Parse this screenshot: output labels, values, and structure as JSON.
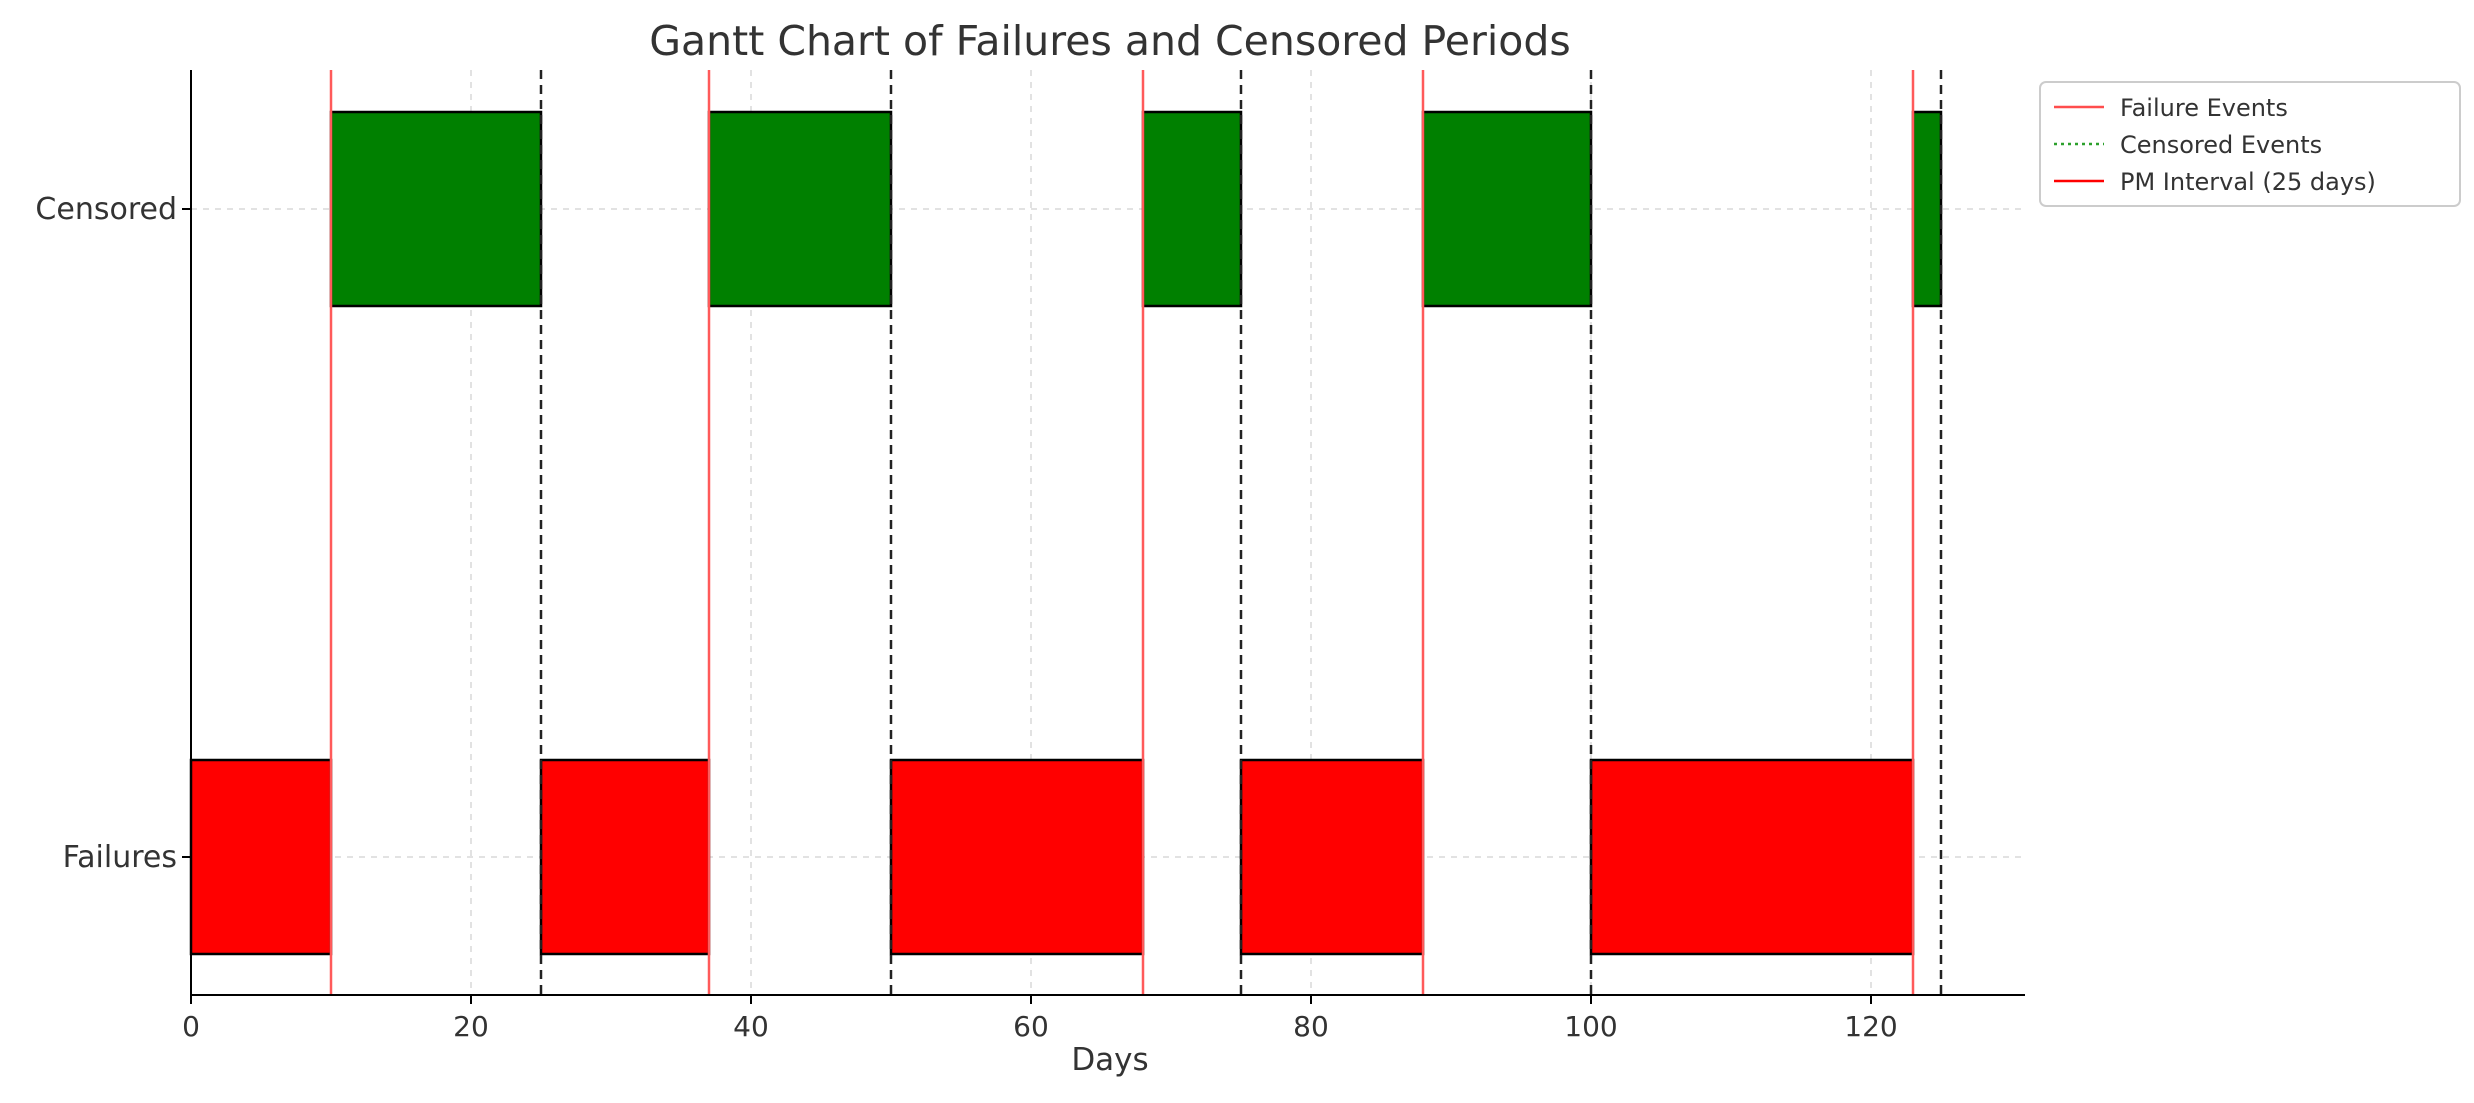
{
  "chart_data": {
    "type": "gantt",
    "title": "Gantt Chart of Failures and Censored Periods",
    "xlabel": "Days",
    "ylabel": "",
    "xlim": [
      0,
      131
    ],
    "x_ticks": [
      0,
      20,
      40,
      60,
      80,
      100,
      120
    ],
    "categories": [
      "Failures",
      "Censored"
    ],
    "grid": true,
    "legend_position": "upper-right-outside",
    "series": [
      {
        "name": "Failures",
        "color": "#ff0000",
        "bars": [
          {
            "start": 0,
            "end": 10
          },
          {
            "start": 25,
            "end": 37
          },
          {
            "start": 50,
            "end": 68
          },
          {
            "start": 75,
            "end": 88
          },
          {
            "start": 100,
            "end": 123
          }
        ]
      },
      {
        "name": "Censored",
        "color": "#008000",
        "bars": [
          {
            "start": 10,
            "end": 25
          },
          {
            "start": 37,
            "end": 50
          },
          {
            "start": 68,
            "end": 75
          },
          {
            "start": 88,
            "end": 100
          },
          {
            "start": 123,
            "end": 125
          }
        ]
      }
    ],
    "failure_event_lines": [
      10,
      37,
      68,
      88,
      123
    ],
    "censored_event_lines": [
      25,
      50,
      75,
      100,
      125
    ],
    "legend": [
      {
        "label": "Failure Events",
        "style": "solid",
        "color": "#ff4d4d"
      },
      {
        "label": "Censored Events",
        "style": "dotted",
        "color": "#2ca02c"
      },
      {
        "label": "PM Interval (25 days)",
        "style": "solid",
        "color": "#ff0000"
      }
    ]
  }
}
